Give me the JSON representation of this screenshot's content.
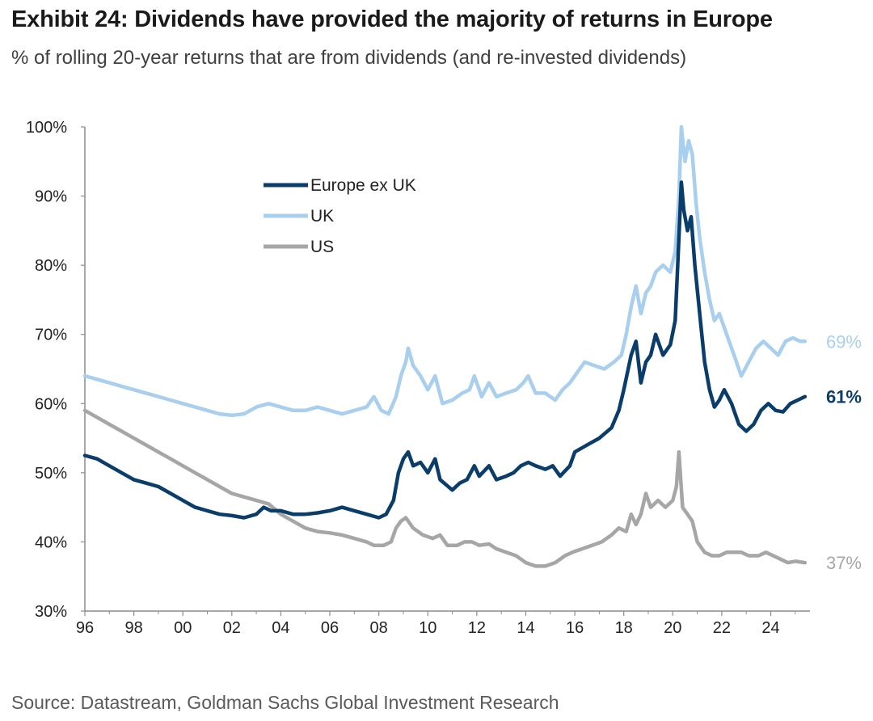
{
  "title": "Exhibit 24: Dividends have provided the majority of returns in Europe",
  "subtitle": "% of rolling 20-year returns that are from dividends (and re-invested dividends)",
  "source": "Source: Datastream, Goldman Sachs Global Investment Research",
  "chart_data": {
    "type": "line",
    "xlim": [
      1996,
      2025.6
    ],
    "ylim": [
      30,
      100
    ],
    "y_ticks": [
      30,
      40,
      50,
      60,
      70,
      80,
      90,
      100
    ],
    "y_tick_labels": [
      "30%",
      "40%",
      "50%",
      "60%",
      "70%",
      "80%",
      "90%",
      "100%"
    ],
    "x_ticks": [
      1996,
      1998,
      2000,
      2002,
      2004,
      2006,
      2008,
      2010,
      2012,
      2014,
      2016,
      2018,
      2020,
      2022,
      2024
    ],
    "x_tick_labels": [
      "96",
      "98",
      "00",
      "02",
      "04",
      "06",
      "08",
      "10",
      "12",
      "14",
      "16",
      "18",
      "20",
      "22",
      "24"
    ],
    "grid": false,
    "legend_position": "top-left",
    "series": [
      {
        "name": "Europe ex UK",
        "color": "#0b3d6b",
        "end_label": "61%",
        "points": [
          [
            1996,
            52.5
          ],
          [
            1996.5,
            52
          ],
          [
            1997,
            51
          ],
          [
            1997.5,
            50
          ],
          [
            1998,
            49
          ],
          [
            1998.5,
            48.5
          ],
          [
            1999,
            48
          ],
          [
            1999.5,
            47
          ],
          [
            2000,
            46
          ],
          [
            2000.5,
            45
          ],
          [
            2001,
            44.5
          ],
          [
            2001.5,
            44
          ],
          [
            2002,
            43.8
          ],
          [
            2002.5,
            43.5
          ],
          [
            2003,
            44
          ],
          [
            2003.3,
            45
          ],
          [
            2003.6,
            44.5
          ],
          [
            2004,
            44.5
          ],
          [
            2004.5,
            44
          ],
          [
            2005,
            44
          ],
          [
            2005.5,
            44.2
          ],
          [
            2006,
            44.5
          ],
          [
            2006.5,
            45
          ],
          [
            2007,
            44.5
          ],
          [
            2007.5,
            44
          ],
          [
            2008,
            43.5
          ],
          [
            2008.3,
            44
          ],
          [
            2008.6,
            46
          ],
          [
            2008.8,
            50
          ],
          [
            2009.0,
            52
          ],
          [
            2009.2,
            53
          ],
          [
            2009.4,
            51
          ],
          [
            2009.7,
            51.5
          ],
          [
            2010,
            50
          ],
          [
            2010.3,
            52
          ],
          [
            2010.5,
            49
          ],
          [
            2011,
            47.5
          ],
          [
            2011.3,
            48.5
          ],
          [
            2011.6,
            49
          ],
          [
            2011.9,
            51
          ],
          [
            2012.1,
            49.5
          ],
          [
            2012.5,
            51
          ],
          [
            2012.8,
            49
          ],
          [
            2013.2,
            49.5
          ],
          [
            2013.5,
            50
          ],
          [
            2013.8,
            51
          ],
          [
            2014.1,
            51.5
          ],
          [
            2014.4,
            51
          ],
          [
            2014.8,
            50.5
          ],
          [
            2015.1,
            51
          ],
          [
            2015.4,
            49.5
          ],
          [
            2015.8,
            51
          ],
          [
            2016,
            53
          ],
          [
            2016.5,
            54
          ],
          [
            2017,
            55
          ],
          [
            2017.5,
            56.5
          ],
          [
            2017.8,
            59
          ],
          [
            2018,
            62
          ],
          [
            2018.3,
            67
          ],
          [
            2018.5,
            69
          ],
          [
            2018.7,
            63
          ],
          [
            2018.9,
            66
          ],
          [
            2019.1,
            67
          ],
          [
            2019.3,
            70
          ],
          [
            2019.6,
            67
          ],
          [
            2019.9,
            68.5
          ],
          [
            2020.1,
            72
          ],
          [
            2020.2,
            80
          ],
          [
            2020.35,
            92
          ],
          [
            2020.45,
            88
          ],
          [
            2020.6,
            85
          ],
          [
            2020.75,
            87
          ],
          [
            2020.9,
            80
          ],
          [
            2021.1,
            73
          ],
          [
            2021.3,
            66
          ],
          [
            2021.5,
            62
          ],
          [
            2021.7,
            59.5
          ],
          [
            2021.9,
            60.5
          ],
          [
            2022.1,
            62
          ],
          [
            2022.4,
            60
          ],
          [
            2022.7,
            57
          ],
          [
            2023.0,
            56
          ],
          [
            2023.3,
            57
          ],
          [
            2023.6,
            59
          ],
          [
            2023.9,
            60
          ],
          [
            2024.2,
            59
          ],
          [
            2024.5,
            58.8
          ],
          [
            2024.8,
            60
          ],
          [
            2025.1,
            60.5
          ],
          [
            2025.4,
            61
          ]
        ]
      },
      {
        "name": "UK",
        "color": "#a9cfee",
        "end_label": "69%",
        "points": [
          [
            1996,
            64
          ],
          [
            1996.5,
            63.5
          ],
          [
            1997,
            63
          ],
          [
            1997.5,
            62.5
          ],
          [
            1998,
            62
          ],
          [
            1998.5,
            61.5
          ],
          [
            1999,
            61
          ],
          [
            1999.5,
            60.5
          ],
          [
            2000,
            60
          ],
          [
            2000.5,
            59.5
          ],
          [
            2001,
            59
          ],
          [
            2001.5,
            58.5
          ],
          [
            2002,
            58.3
          ],
          [
            2002.5,
            58.5
          ],
          [
            2003,
            59.5
          ],
          [
            2003.5,
            60
          ],
          [
            2004,
            59.5
          ],
          [
            2004.5,
            59
          ],
          [
            2005,
            59
          ],
          [
            2005.5,
            59.5
          ],
          [
            2006,
            59
          ],
          [
            2006.5,
            58.5
          ],
          [
            2007,
            59
          ],
          [
            2007.5,
            59.5
          ],
          [
            2007.8,
            61
          ],
          [
            2008.1,
            59
          ],
          [
            2008.4,
            58.5
          ],
          [
            2008.7,
            61
          ],
          [
            2008.9,
            64
          ],
          [
            2009.1,
            66
          ],
          [
            2009.2,
            68
          ],
          [
            2009.4,
            65.5
          ],
          [
            2009.7,
            64
          ],
          [
            2010.0,
            62
          ],
          [
            2010.3,
            64
          ],
          [
            2010.6,
            60
          ],
          [
            2011,
            60.5
          ],
          [
            2011.4,
            61.5
          ],
          [
            2011.7,
            62
          ],
          [
            2011.9,
            64
          ],
          [
            2012.2,
            61
          ],
          [
            2012.5,
            63
          ],
          [
            2012.8,
            61
          ],
          [
            2013.2,
            61.5
          ],
          [
            2013.6,
            62
          ],
          [
            2013.9,
            63
          ],
          [
            2014.1,
            64
          ],
          [
            2014.4,
            61.5
          ],
          [
            2014.8,
            61.5
          ],
          [
            2015.2,
            60.5
          ],
          [
            2015.5,
            62
          ],
          [
            2015.8,
            63
          ],
          [
            2016.1,
            64.5
          ],
          [
            2016.4,
            66
          ],
          [
            2016.8,
            65.5
          ],
          [
            2017.2,
            65
          ],
          [
            2017.6,
            66
          ],
          [
            2017.9,
            67
          ],
          [
            2018.1,
            70
          ],
          [
            2018.3,
            74
          ],
          [
            2018.5,
            77
          ],
          [
            2018.7,
            73
          ],
          [
            2018.9,
            76
          ],
          [
            2019.1,
            77
          ],
          [
            2019.3,
            79
          ],
          [
            2019.6,
            80
          ],
          [
            2019.9,
            79
          ],
          [
            2020.1,
            82
          ],
          [
            2020.25,
            90
          ],
          [
            2020.35,
            100
          ],
          [
            2020.5,
            95
          ],
          [
            2020.65,
            98
          ],
          [
            2020.8,
            96
          ],
          [
            2020.95,
            89
          ],
          [
            2021.1,
            84
          ],
          [
            2021.3,
            79
          ],
          [
            2021.5,
            75
          ],
          [
            2021.7,
            72
          ],
          [
            2021.9,
            73
          ],
          [
            2022.2,
            70
          ],
          [
            2022.5,
            67
          ],
          [
            2022.8,
            64
          ],
          [
            2023.1,
            66
          ],
          [
            2023.4,
            68
          ],
          [
            2023.7,
            69
          ],
          [
            2024.0,
            68
          ],
          [
            2024.3,
            67
          ],
          [
            2024.6,
            69
          ],
          [
            2024.9,
            69.5
          ],
          [
            2025.2,
            69
          ],
          [
            2025.4,
            69
          ]
        ]
      },
      {
        "name": "US",
        "color": "#a6a6a6",
        "end_label": "37%",
        "points": [
          [
            1996,
            59
          ],
          [
            1996.5,
            58
          ],
          [
            1997,
            57
          ],
          [
            1997.5,
            56
          ],
          [
            1998,
            55
          ],
          [
            1998.5,
            54
          ],
          [
            1999,
            53
          ],
          [
            1999.5,
            52
          ],
          [
            2000,
            51
          ],
          [
            2000.5,
            50
          ],
          [
            2001,
            49
          ],
          [
            2001.5,
            48
          ],
          [
            2002,
            47
          ],
          [
            2002.5,
            46.5
          ],
          [
            2003,
            46
          ],
          [
            2003.5,
            45.5
          ],
          [
            2004,
            44
          ],
          [
            2004.5,
            43
          ],
          [
            2005,
            42
          ],
          [
            2005.5,
            41.5
          ],
          [
            2006,
            41.3
          ],
          [
            2006.5,
            41
          ],
          [
            2007,
            40.5
          ],
          [
            2007.5,
            40
          ],
          [
            2007.8,
            39.5
          ],
          [
            2008.2,
            39.5
          ],
          [
            2008.5,
            40
          ],
          [
            2008.7,
            42
          ],
          [
            2008.9,
            43
          ],
          [
            2009.1,
            43.5
          ],
          [
            2009.4,
            42
          ],
          [
            2009.8,
            41
          ],
          [
            2010.2,
            40.5
          ],
          [
            2010.5,
            41
          ],
          [
            2010.8,
            39.5
          ],
          [
            2011.2,
            39.5
          ],
          [
            2011.5,
            40
          ],
          [
            2011.8,
            40
          ],
          [
            2012.1,
            39.5
          ],
          [
            2012.5,
            39.7
          ],
          [
            2012.8,
            39
          ],
          [
            2013.2,
            38.5
          ],
          [
            2013.6,
            38
          ],
          [
            2014.0,
            37
          ],
          [
            2014.4,
            36.5
          ],
          [
            2014.8,
            36.5
          ],
          [
            2015.2,
            37
          ],
          [
            2015.6,
            38
          ],
          [
            2015.9,
            38.5
          ],
          [
            2016.3,
            39
          ],
          [
            2016.7,
            39.5
          ],
          [
            2017.1,
            40
          ],
          [
            2017.5,
            41
          ],
          [
            2017.8,
            42
          ],
          [
            2018.1,
            41.5
          ],
          [
            2018.3,
            44
          ],
          [
            2018.5,
            42.5
          ],
          [
            2018.7,
            44
          ],
          [
            2018.9,
            47
          ],
          [
            2019.1,
            45
          ],
          [
            2019.4,
            46
          ],
          [
            2019.7,
            45
          ],
          [
            2020.0,
            46
          ],
          [
            2020.15,
            48
          ],
          [
            2020.25,
            53
          ],
          [
            2020.4,
            45
          ],
          [
            2020.6,
            44
          ],
          [
            2020.8,
            43
          ],
          [
            2021.0,
            40
          ],
          [
            2021.3,
            38.5
          ],
          [
            2021.6,
            38
          ],
          [
            2021.9,
            38
          ],
          [
            2022.2,
            38.5
          ],
          [
            2022.5,
            38.5
          ],
          [
            2022.8,
            38.5
          ],
          [
            2023.1,
            38
          ],
          [
            2023.5,
            38
          ],
          [
            2023.8,
            38.5
          ],
          [
            2024.1,
            38
          ],
          [
            2024.4,
            37.5
          ],
          [
            2024.7,
            37
          ],
          [
            2025.0,
            37.2
          ],
          [
            2025.4,
            37
          ]
        ]
      }
    ]
  }
}
